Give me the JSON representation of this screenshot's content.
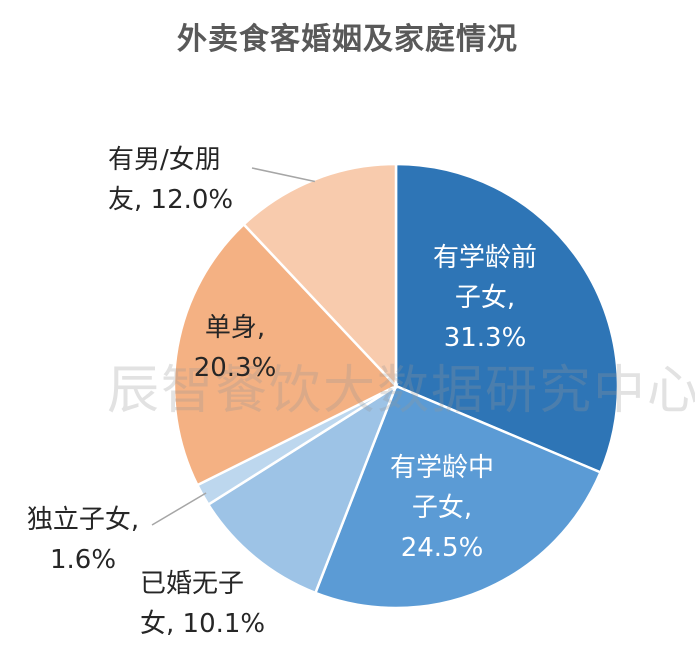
{
  "chart_data": {
    "type": "pie",
    "title": "外卖食客婚姻及家庭情况",
    "start_angle_deg": 0,
    "direction": "clockwise",
    "slices": [
      {
        "name": "有学龄前子女",
        "value": 31.3,
        "label_lines": [
          "有学龄前",
          "子女,",
          "31.3%"
        ],
        "color": "#2E75B6"
      },
      {
        "name": "有学龄中子女",
        "value": 24.5,
        "label_lines": [
          "有学龄中",
          "子女,",
          "24.5%"
        ],
        "color": "#5B9BD5"
      },
      {
        "name": "已婚无子女",
        "value": 10.1,
        "label_lines": [
          "已婚无子",
          "女, 10.1%"
        ],
        "color": "#9DC3E6"
      },
      {
        "name": "独立子女",
        "value": 1.6,
        "label_lines": [
          "独立子女,",
          "1.6%"
        ],
        "color": "#BDD7EE"
      },
      {
        "name": "单身",
        "value": 20.3,
        "label_lines": [
          "单身,",
          "20.3%"
        ],
        "color": "#F4B183"
      },
      {
        "name": "有男/女朋友",
        "value": 12.0,
        "label_lines": [
          "有男/女朋",
          "友, 12.0%"
        ],
        "color": "#F8CBAD"
      }
    ]
  },
  "watermark": "辰智餐饮大数据研究中心"
}
